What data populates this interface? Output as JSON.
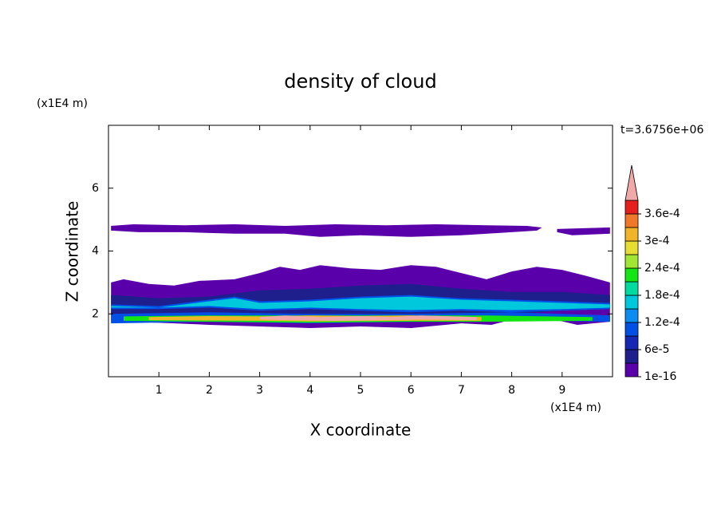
{
  "chart_data": {
    "type": "contour",
    "title": "density of cloud",
    "xlabel": "X coordinate",
    "ylabel": "Z coordinate",
    "xunit": "(x1E4 m)",
    "yunit": "(x1E4 m)",
    "annotation": "t=3.6756e+06",
    "xlim": [
      0,
      10
    ],
    "ylim": [
      0,
      8
    ],
    "xticks": [
      1,
      2,
      3,
      4,
      5,
      6,
      7,
      8,
      9
    ],
    "yticks": [
      2,
      4,
      6
    ],
    "levels": [
      1e-16,
      3e-05,
      6e-05,
      9e-05,
      0.00012,
      0.00015,
      0.00018,
      0.00021,
      0.00024,
      0.00027,
      0.0003,
      0.00033,
      0.00036,
      0.00039
    ],
    "colors": [
      "#5a00aa",
      "#1e1e8c",
      "#1428b4",
      "#0050e6",
      "#0a8cf0",
      "#00c8dc",
      "#00dca0",
      "#14e614",
      "#a0e632",
      "#e6dc32",
      "#f0b428",
      "#f07828",
      "#e61e1e"
    ],
    "over_color": "#f0a8a8",
    "colorbar_ticks": [
      {
        "value": 1e-16,
        "label": "1e-16"
      },
      {
        "value": 6e-05,
        "label": "6e-5"
      },
      {
        "value": 0.00012,
        "label": "1.2e-4"
      },
      {
        "value": 0.00018,
        "label": "1.8e-4"
      },
      {
        "value": 0.00024,
        "label": "2.4e-4"
      },
      {
        "value": 0.0003,
        "label": "3e-4"
      },
      {
        "value": 0.00036,
        "label": "3.6e-4"
      }
    ],
    "regions": [
      {
        "value": 1e-05,
        "x": [
          0.05,
          0.5,
          1.5,
          2.5,
          3.5,
          4.5,
          5.5,
          6.5,
          7.5,
          8.3,
          8.6,
          8.5,
          8.0,
          7.0,
          6.0,
          5.0,
          4.2,
          3.5,
          2.5,
          1.5,
          0.6,
          0.05
        ],
        "z": [
          4.8,
          4.85,
          4.82,
          4.85,
          4.8,
          4.85,
          4.82,
          4.85,
          4.82,
          4.8,
          4.75,
          4.65,
          4.6,
          4.5,
          4.45,
          4.5,
          4.45,
          4.55,
          4.55,
          4.6,
          4.6,
          4.65
        ]
      },
      {
        "value": 1e-05,
        "x": [
          8.9,
          9.95,
          9.95,
          9.2,
          8.9
        ],
        "z": [
          4.7,
          4.75,
          4.55,
          4.5,
          4.6
        ]
      },
      {
        "value": 1e-05,
        "x": [
          0.05,
          0.3,
          0.8,
          1.3,
          1.8,
          2.5,
          3.0,
          3.4,
          3.8,
          4.2,
          4.8,
          5.4,
          6.0,
          6.5,
          7.0,
          7.5,
          8.0,
          8.5,
          9.0,
          9.5,
          9.95,
          9.95,
          9.3,
          8.9,
          8.2,
          7.6,
          7.0,
          6.0,
          5.0,
          4.0,
          3.0,
          2.0,
          1.3,
          0.5,
          0.05
        ],
        "z": [
          3.0,
          3.1,
          2.95,
          2.9,
          3.05,
          3.1,
          3.3,
          3.5,
          3.4,
          3.55,
          3.45,
          3.4,
          3.55,
          3.5,
          3.3,
          3.1,
          3.35,
          3.5,
          3.4,
          3.2,
          3.0,
          1.75,
          1.65,
          1.8,
          1.9,
          1.65,
          1.7,
          1.55,
          1.6,
          1.55,
          1.6,
          1.65,
          1.7,
          1.75,
          1.75
        ]
      },
      {
        "value": 4e-05,
        "x": [
          0.05,
          1,
          2,
          3,
          4,
          5,
          6,
          7,
          8,
          9,
          9.95,
          9.95,
          9,
          8,
          7,
          6,
          5,
          4,
          3,
          2,
          1,
          0.05
        ],
        "z": [
          2.6,
          2.5,
          2.55,
          2.75,
          2.8,
          2.9,
          2.95,
          2.8,
          2.7,
          2.7,
          2.6,
          2.2,
          2.1,
          2.0,
          1.9,
          1.85,
          1.85,
          1.9,
          1.85,
          1.85,
          1.9,
          1.95
        ]
      },
      {
        "value": 0.0001,
        "x": [
          0.05,
          1,
          2,
          2.5,
          3,
          4,
          5,
          6,
          7,
          8,
          9,
          9.95,
          9.95,
          9,
          8,
          7,
          6,
          5,
          4,
          3,
          2,
          1,
          0.05
        ],
        "z": [
          2.3,
          2.25,
          2.45,
          2.55,
          2.4,
          2.45,
          2.55,
          2.6,
          2.5,
          2.45,
          2.4,
          2.35,
          2.15,
          2.1,
          2.05,
          2.1,
          2.05,
          2.1,
          2.15,
          2.1,
          2.2,
          2.15,
          2.15
        ]
      },
      {
        "value": 0.00016,
        "x": [
          0.05,
          1,
          2,
          2.5,
          3,
          4,
          5,
          6,
          7,
          8,
          9,
          9.95,
          9.95,
          9,
          8,
          7,
          6,
          5,
          4,
          3,
          2,
          1,
          0.05
        ],
        "z": [
          2.25,
          2.2,
          2.4,
          2.5,
          2.35,
          2.4,
          2.5,
          2.55,
          2.45,
          2.4,
          2.35,
          2.3,
          2.2,
          2.15,
          2.12,
          2.15,
          2.12,
          2.15,
          2.2,
          2.15,
          2.25,
          2.2,
          2.2
        ]
      },
      {
        "value": 0.0001,
        "x": [
          0.05,
          2,
          4,
          6,
          8,
          9.95,
          9.95,
          8,
          6,
          4,
          2,
          0.05
        ],
        "z": [
          2.0,
          2.05,
          2.0,
          2.0,
          2.05,
          1.95,
          1.75,
          1.8,
          1.75,
          1.7,
          1.75,
          1.7
        ]
      },
      {
        "value": 0.00022,
        "x": [
          0.3,
          2,
          4,
          6,
          7.5,
          9.6,
          9.6,
          7.5,
          6,
          4,
          2,
          0.3
        ],
        "z": [
          1.92,
          1.95,
          1.95,
          1.95,
          1.95,
          1.9,
          1.78,
          1.75,
          1.75,
          1.72,
          1.75,
          1.78
        ]
      },
      {
        "value": 0.0003,
        "x": [
          0.8,
          2,
          3,
          4,
          5,
          6,
          7.4,
          7.4,
          6,
          5,
          4,
          3,
          2,
          0.8
        ],
        "z": [
          1.9,
          1.93,
          1.92,
          1.95,
          1.93,
          1.95,
          1.9,
          1.78,
          1.78,
          1.77,
          1.76,
          1.78,
          1.79,
          1.8
        ]
      },
      {
        "value": 0.0004,
        "x": [
          3.0,
          3.5,
          4.2,
          5,
          5.6,
          6.2,
          7.3,
          7.3,
          6.2,
          5.5,
          4.5,
          3.5,
          3.0
        ],
        "z": [
          1.9,
          1.95,
          1.9,
          1.93,
          1.9,
          1.95,
          1.9,
          1.8,
          1.82,
          1.8,
          1.78,
          1.8,
          1.82
        ]
      }
    ]
  }
}
